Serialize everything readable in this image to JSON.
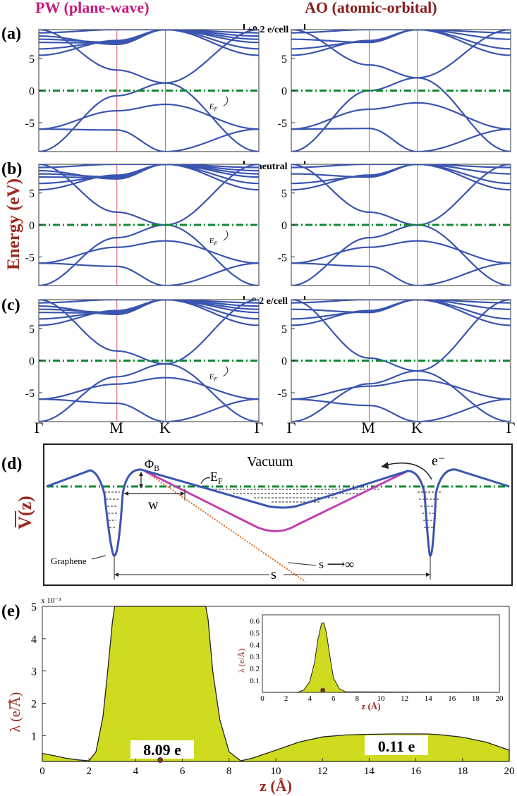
{
  "headers": {
    "pw": "PW  (plane-wave)",
    "ao": "AO  (atomic-orbital)"
  },
  "panel_labels": {
    "a": "(a)",
    "b": "(b)",
    "c": "(c)",
    "d": "(d)",
    "e": "(e)"
  },
  "charge_labels": {
    "a": "+0.2 e/cell",
    "b": "neutral",
    "c": "-0.2 e/cell"
  },
  "ylabel": "Energy (eV)",
  "ef_label": "E",
  "ef_sub": "F",
  "kpoints": [
    "Γ",
    "M",
    "K",
    "Γ"
  ],
  "colors": {
    "header_pw": "#c8197c",
    "header_ao": "#8b1a1a",
    "band": "#3a55b0",
    "fermi": "#118833",
    "accent": "#9b2a20",
    "fill": "#cfdb1f",
    "magenta": "#c040b0",
    "orange": "#e46a10"
  },
  "diagram": {
    "vacuum": "Vacuum",
    "phi": "Φ",
    "phi_sub": "B",
    "ef": "E",
    "ef_sub": "F",
    "w": "w",
    "electron": "e⁻",
    "s_inf": "s ⟶∞",
    "s": "s",
    "graphene": "Graphene",
    "vlabel": "V(z)"
  },
  "chart_data": [
    {
      "type": "line",
      "panel": "(a) PW",
      "charge": "+0.2 e/cell",
      "ylim": [
        -9.5,
        9.5
      ],
      "yticks": [
        "5",
        "0",
        "-5"
      ],
      "fermi_level": 0,
      "dirac_point": 1.2,
      "xticks": [
        "Γ",
        "M",
        "K",
        "Γ"
      ]
    },
    {
      "type": "line",
      "panel": "(a) AO",
      "charge": "+0.2 e/cell",
      "ylim": [
        -9.5,
        9.5
      ],
      "yticks": [
        "5",
        "0",
        "-5"
      ],
      "fermi_level": 0,
      "dirac_point": 2.0,
      "xticks": [
        "Γ",
        "M",
        "K",
        "Γ"
      ]
    },
    {
      "type": "line",
      "panel": "(b) PW",
      "charge": "neutral",
      "ylim": [
        -9.5,
        9.5
      ],
      "yticks": [
        "5",
        "0",
        "-5"
      ],
      "fermi_level": 0,
      "dirac_point": 0,
      "xticks": [
        "Γ",
        "M",
        "K",
        "Γ"
      ]
    },
    {
      "type": "line",
      "panel": "(b) AO",
      "charge": "neutral",
      "ylim": [
        -9.5,
        9.5
      ],
      "yticks": [
        "5",
        "0",
        "-5"
      ],
      "fermi_level": 0,
      "dirac_point": 0,
      "xticks": [
        "Γ",
        "M",
        "K",
        "Γ"
      ]
    },
    {
      "type": "line",
      "panel": "(c) PW",
      "charge": "-0.2 e/cell",
      "ylim": [
        -9.5,
        9.5
      ],
      "yticks": [
        "5",
        "0",
        "-5"
      ],
      "fermi_level": 0,
      "dirac_point": -0.5,
      "xticks": [
        "Γ",
        "M",
        "K",
        "Γ"
      ]
    },
    {
      "type": "line",
      "panel": "(c) AO",
      "charge": "-0.2 e/cell",
      "ylim": [
        -9.5,
        9.5
      ],
      "yticks": [
        "5",
        "0",
        "-5"
      ],
      "fermi_level": 0,
      "dirac_point": -1.6,
      "xticks": [
        "Γ",
        "M",
        "K",
        "Γ"
      ]
    },
    {
      "type": "area",
      "panel": "(e)",
      "xlabel": "z (Å)",
      "ylabel": "λ (e/Å)",
      "scale": "x 10⁻³",
      "xlim": [
        0,
        20
      ],
      "ylim": [
        0.2,
        5
      ],
      "xticks": [
        "0",
        "2",
        "4",
        "6",
        "8",
        "10",
        "12",
        "14",
        "16",
        "18",
        "20"
      ],
      "yticks": [
        "1",
        "2",
        "3",
        "4",
        "5"
      ],
      "x": [
        0,
        0.5,
        1,
        1.5,
        2,
        2.3,
        2.6,
        2.8,
        3.0,
        3.1,
        7.0,
        7.1,
        7.3,
        7.6,
        8.0,
        8.5,
        9,
        10,
        11,
        12,
        13,
        14,
        15,
        16,
        16.5,
        17,
        18,
        19,
        20
      ],
      "y": [
        0.45,
        0.38,
        0.3,
        0.25,
        0.22,
        0.5,
        1.6,
        3.0,
        4.5,
        5.0,
        5.0,
        4.6,
        3.0,
        1.5,
        0.5,
        0.22,
        0.3,
        0.55,
        0.8,
        0.96,
        1.02,
        1.04,
        1.05,
        1.05,
        1.05,
        1.03,
        0.95,
        0.8,
        0.55
      ],
      "annotations": [
        "8.09 e",
        "0.11 e"
      ]
    },
    {
      "type": "area",
      "panel": "(e) inset",
      "xlabel": "z (Å)",
      "ylabel": "λ (e/Å)",
      "xlim": [
        0,
        20
      ],
      "ylim": [
        0,
        0.65
      ],
      "xticks": [
        "0",
        "2",
        "4",
        "6",
        "8",
        "10",
        "12",
        "14",
        "16",
        "18",
        "20"
      ],
      "yticks": [
        "0.1",
        "0.2",
        "0.3",
        "0.4",
        "0.5",
        "0.6"
      ],
      "x": [
        0,
        3,
        3.5,
        4,
        4.4,
        4.7,
        5.0,
        5.2,
        5.4,
        5.7,
        6.0,
        6.5,
        7,
        20
      ],
      "y": [
        0,
        0.002,
        0.02,
        0.09,
        0.25,
        0.45,
        0.58,
        0.58,
        0.5,
        0.3,
        0.12,
        0.03,
        0.005,
        0
      ]
    }
  ]
}
